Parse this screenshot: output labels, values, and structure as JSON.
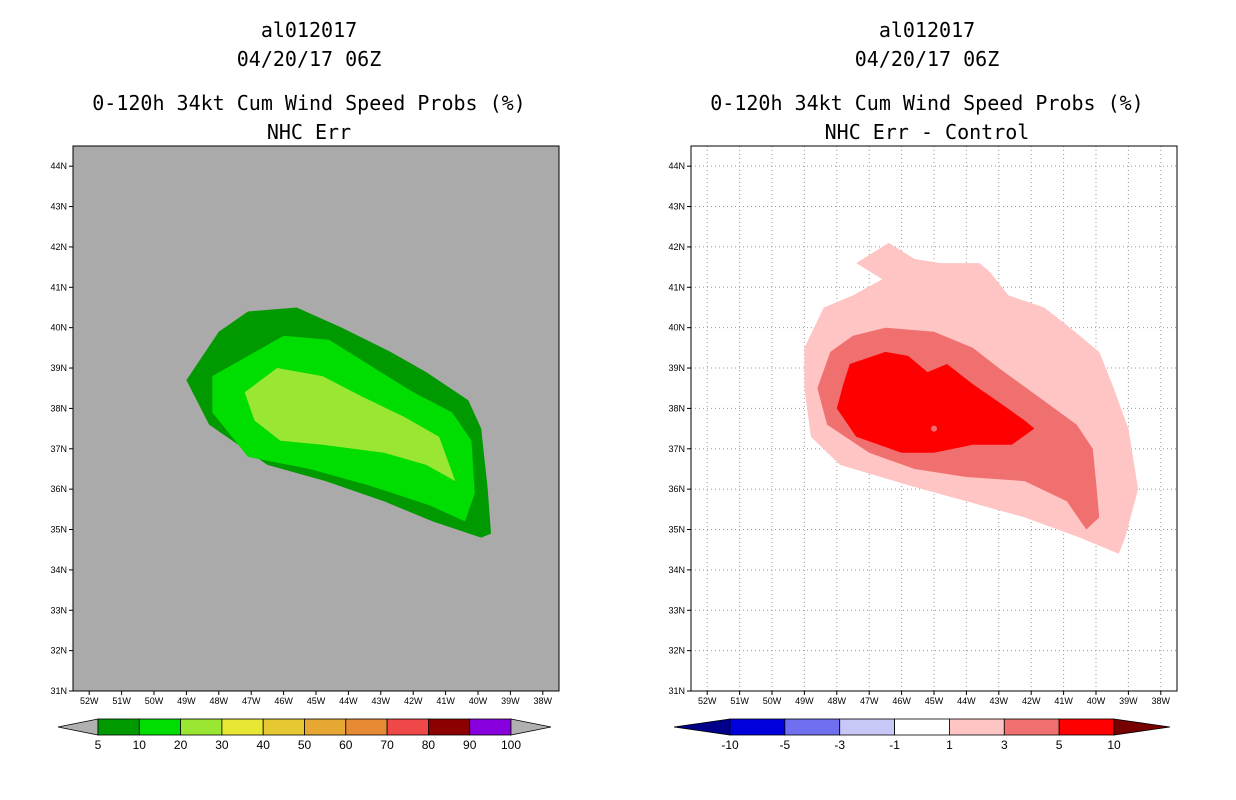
{
  "left": {
    "storm_id": "al012017",
    "datetime": "04/20/17 06Z",
    "product": "0-120h 34kt Cum Wind Speed Probs (%)",
    "subtitle": "NHC Err",
    "lat_labels": [
      "44N",
      "43N",
      "42N",
      "41N",
      "40N",
      "39N",
      "38N",
      "37N",
      "36N",
      "35N",
      "34N",
      "33N",
      "32N",
      "31N"
    ],
    "lon_labels": [
      "52W",
      "51W",
      "50W",
      "49W",
      "48W",
      "47W",
      "46W",
      "45W",
      "44W",
      "43W",
      "42W",
      "41W",
      "40W",
      "39W",
      "38W"
    ],
    "colorbar": {
      "ticks": [
        "5",
        "10",
        "20",
        "30",
        "40",
        "50",
        "60",
        "70",
        "80",
        "90",
        "100"
      ],
      "colors": [
        "#009900",
        "#00dd00",
        "#99e633",
        "#e6e633",
        "#e6c833",
        "#e6a833",
        "#e68a33",
        "#f04848",
        "#8c0000",
        "#8800dd"
      ],
      "under_color": "#b0b0b0",
      "over_color": "#b0b0b0"
    },
    "background_color": "#aaaaaa",
    "contours": [
      {
        "level": 5,
        "color": "#009900",
        "points": [
          [
            -48.0,
            39.9
          ],
          [
            -47.1,
            40.4
          ],
          [
            -45.6,
            40.5
          ],
          [
            -44.2,
            40.0
          ],
          [
            -42.7,
            39.4
          ],
          [
            -41.6,
            38.9
          ],
          [
            -40.3,
            38.2
          ],
          [
            -39.9,
            37.5
          ],
          [
            -39.7,
            36.0
          ],
          [
            -39.6,
            34.9
          ],
          [
            -39.9,
            34.8
          ],
          [
            -41.4,
            35.2
          ],
          [
            -42.9,
            35.7
          ],
          [
            -44.7,
            36.2
          ],
          [
            -46.5,
            36.6
          ],
          [
            -48.3,
            37.6
          ],
          [
            -49.0,
            38.7
          ]
        ]
      },
      {
        "level": 10,
        "color": "#00dd00",
        "points": [
          [
            -47.1,
            39.3
          ],
          [
            -46.0,
            39.8
          ],
          [
            -44.6,
            39.7
          ],
          [
            -43.4,
            39.1
          ],
          [
            -42.0,
            38.4
          ],
          [
            -40.8,
            37.9
          ],
          [
            -40.2,
            37.2
          ],
          [
            -40.1,
            35.9
          ],
          [
            -40.4,
            35.2
          ],
          [
            -41.5,
            35.6
          ],
          [
            -43.4,
            36.1
          ],
          [
            -45.2,
            36.5
          ],
          [
            -47.1,
            36.8
          ],
          [
            -48.2,
            37.9
          ],
          [
            -48.2,
            38.8
          ]
        ]
      },
      {
        "level": 20,
        "color": "#99e633",
        "points": [
          [
            -47.2,
            38.4
          ],
          [
            -46.2,
            39.0
          ],
          [
            -44.8,
            38.8
          ],
          [
            -43.6,
            38.3
          ],
          [
            -42.3,
            37.8
          ],
          [
            -41.2,
            37.3
          ],
          [
            -40.7,
            36.2
          ],
          [
            -41.6,
            36.6
          ],
          [
            -42.9,
            36.9
          ],
          [
            -44.8,
            37.1
          ],
          [
            -46.1,
            37.2
          ],
          [
            -46.9,
            37.7
          ]
        ]
      }
    ]
  },
  "right": {
    "storm_id": "al012017",
    "datetime": "04/20/17 06Z",
    "product": "0-120h 34kt Cum Wind Speed Probs (%)",
    "subtitle": "NHC Err - Control",
    "lat_labels": [
      "44N",
      "43N",
      "42N",
      "41N",
      "40N",
      "39N",
      "38N",
      "37N",
      "36N",
      "35N",
      "34N",
      "33N",
      "32N",
      "31N"
    ],
    "lon_labels": [
      "52W",
      "51W",
      "50W",
      "49W",
      "48W",
      "47W",
      "46W",
      "45W",
      "44W",
      "43W",
      "42W",
      "41W",
      "40W",
      "39W",
      "38W"
    ],
    "colorbar": {
      "ticks": [
        "-10",
        "-5",
        "-3",
        "-1",
        "1",
        "3",
        "5",
        "10"
      ],
      "colors": [
        "#0000dd",
        "#6f6ff0",
        "#c8c8f8",
        "#ffffff",
        "#ffc4c4",
        "#f07070",
        "#ff0000"
      ],
      "under_color": "#000088",
      "over_color": "#770000"
    },
    "background_color": "#ffffff",
    "grid_color": "#999999",
    "contours": [
      {
        "level": 1,
        "color": "#ffc4c4",
        "points": [
          [
            -47.4,
            41.6
          ],
          [
            -46.4,
            42.1
          ],
          [
            -45.6,
            41.7
          ],
          [
            -44.8,
            41.6
          ],
          [
            -43.6,
            41.6
          ],
          [
            -43.3,
            41.4
          ],
          [
            -42.7,
            40.8
          ],
          [
            -41.6,
            40.5
          ],
          [
            -40.8,
            40.0
          ],
          [
            -39.9,
            39.4
          ],
          [
            -39.5,
            38.6
          ],
          [
            -39.0,
            37.5
          ],
          [
            -38.7,
            36.0
          ],
          [
            -39.1,
            34.8
          ],
          [
            -39.3,
            34.4
          ],
          [
            -40.5,
            34.8
          ],
          [
            -42.2,
            35.3
          ],
          [
            -44.0,
            35.7
          ],
          [
            -45.8,
            36.1
          ],
          [
            -47.9,
            36.6
          ],
          [
            -48.8,
            37.3
          ],
          [
            -49.0,
            38.5
          ],
          [
            -49.0,
            39.5
          ],
          [
            -48.4,
            40.5
          ],
          [
            -47.5,
            40.8
          ],
          [
            -46.6,
            41.2
          ],
          [
            -47.2,
            41.5
          ]
        ]
      },
      {
        "level": 3,
        "color": "#f07070",
        "points": [
          [
            -47.5,
            39.8
          ],
          [
            -46.5,
            40.0
          ],
          [
            -45.0,
            39.9
          ],
          [
            -43.8,
            39.5
          ],
          [
            -43.0,
            39.0
          ],
          [
            -41.8,
            38.3
          ],
          [
            -40.6,
            37.6
          ],
          [
            -40.1,
            37.0
          ],
          [
            -40.0,
            36.2
          ],
          [
            -39.9,
            35.3
          ],
          [
            -40.3,
            35.0
          ],
          [
            -40.9,
            35.7
          ],
          [
            -42.2,
            36.2
          ],
          [
            -44.0,
            36.3
          ],
          [
            -45.6,
            36.5
          ],
          [
            -47.0,
            36.9
          ],
          [
            -48.3,
            37.6
          ],
          [
            -48.6,
            38.5
          ],
          [
            -48.2,
            39.4
          ]
        ]
      },
      {
        "level": 5,
        "color": "#ff0000",
        "points": [
          [
            -47.6,
            39.1
          ],
          [
            -46.5,
            39.4
          ],
          [
            -45.8,
            39.3
          ],
          [
            -45.2,
            38.9
          ],
          [
            -44.6,
            39.1
          ],
          [
            -43.8,
            38.6
          ],
          [
            -42.9,
            38.1
          ],
          [
            -42.2,
            37.7
          ],
          [
            -41.9,
            37.5
          ],
          [
            -42.6,
            37.1
          ],
          [
            -43.8,
            37.1
          ],
          [
            -45.0,
            36.9
          ],
          [
            -46.0,
            36.9
          ],
          [
            -47.4,
            37.3
          ],
          [
            -48.0,
            38.0
          ],
          [
            -47.8,
            38.6
          ]
        ]
      }
    ]
  }
}
